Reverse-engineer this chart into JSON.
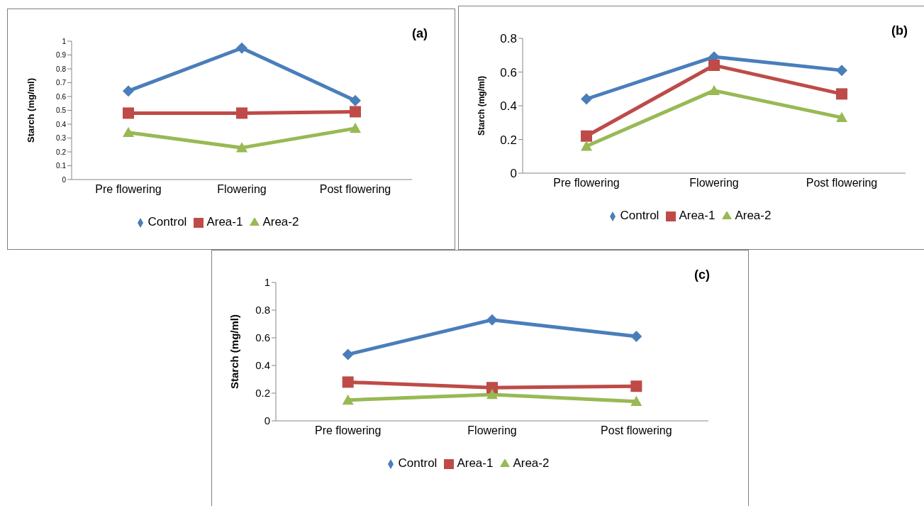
{
  "chart_data": [
    {
      "type": "line",
      "title": "(a)",
      "ylabel": "Starch  (mg/ml)",
      "categories": [
        "Pre flowering",
        "Flowering",
        "Post flowering"
      ],
      "ylim": [
        0,
        1
      ],
      "yticks": [
        0,
        0.1,
        0.2,
        0.3,
        0.4,
        0.5,
        0.6,
        0.7,
        0.8,
        0.9,
        1
      ],
      "grid": false,
      "legend": "bottom",
      "series": [
        {
          "name": "Control",
          "color": "#4a7ebb",
          "marker": "diamond",
          "values": [
            0.64,
            0.95,
            0.57
          ]
        },
        {
          "name": "Area-1",
          "color": "#be4b48",
          "marker": "square",
          "values": [
            0.48,
            0.48,
            0.49
          ]
        },
        {
          "name": "Area-2",
          "color": "#98b954",
          "marker": "triangle",
          "values": [
            0.34,
            0.23,
            0.37
          ]
        }
      ]
    },
    {
      "type": "line",
      "title": "(b)",
      "ylabel": "Starch  (mg/ml)",
      "categories": [
        "Pre flowering",
        "Flowering",
        "Post flowering"
      ],
      "ylim": [
        0,
        0.8
      ],
      "yticks": [
        0,
        0.2,
        0.4,
        0.6,
        0.8
      ],
      "grid": false,
      "legend": "bottom",
      "series": [
        {
          "name": "Control",
          "color": "#4a7ebb",
          "marker": "diamond",
          "values": [
            0.44,
            0.69,
            0.61
          ]
        },
        {
          "name": "Area-1",
          "color": "#be4b48",
          "marker": "square",
          "values": [
            0.22,
            0.64,
            0.47
          ]
        },
        {
          "name": "Area-2",
          "color": "#98b954",
          "marker": "triangle",
          "values": [
            0.16,
            0.49,
            0.33
          ]
        }
      ]
    },
    {
      "type": "line",
      "title": "(c)",
      "ylabel": "Starch (mg/ml)",
      "categories": [
        "Pre flowering",
        "Flowering",
        "Post flowering"
      ],
      "ylim": [
        0,
        1
      ],
      "yticks": [
        0,
        0.2,
        0.4,
        0.6,
        0.8,
        1
      ],
      "grid": false,
      "legend": "bottom",
      "series": [
        {
          "name": "Control",
          "color": "#4a7ebb",
          "marker": "diamond",
          "values": [
            0.48,
            0.73,
            0.61
          ]
        },
        {
          "name": "Area-1",
          "color": "#be4b48",
          "marker": "square",
          "values": [
            0.28,
            0.24,
            0.25
          ]
        },
        {
          "name": "Area-2",
          "color": "#98b954",
          "marker": "triangle",
          "values": [
            0.15,
            0.19,
            0.14
          ]
        }
      ]
    }
  ]
}
